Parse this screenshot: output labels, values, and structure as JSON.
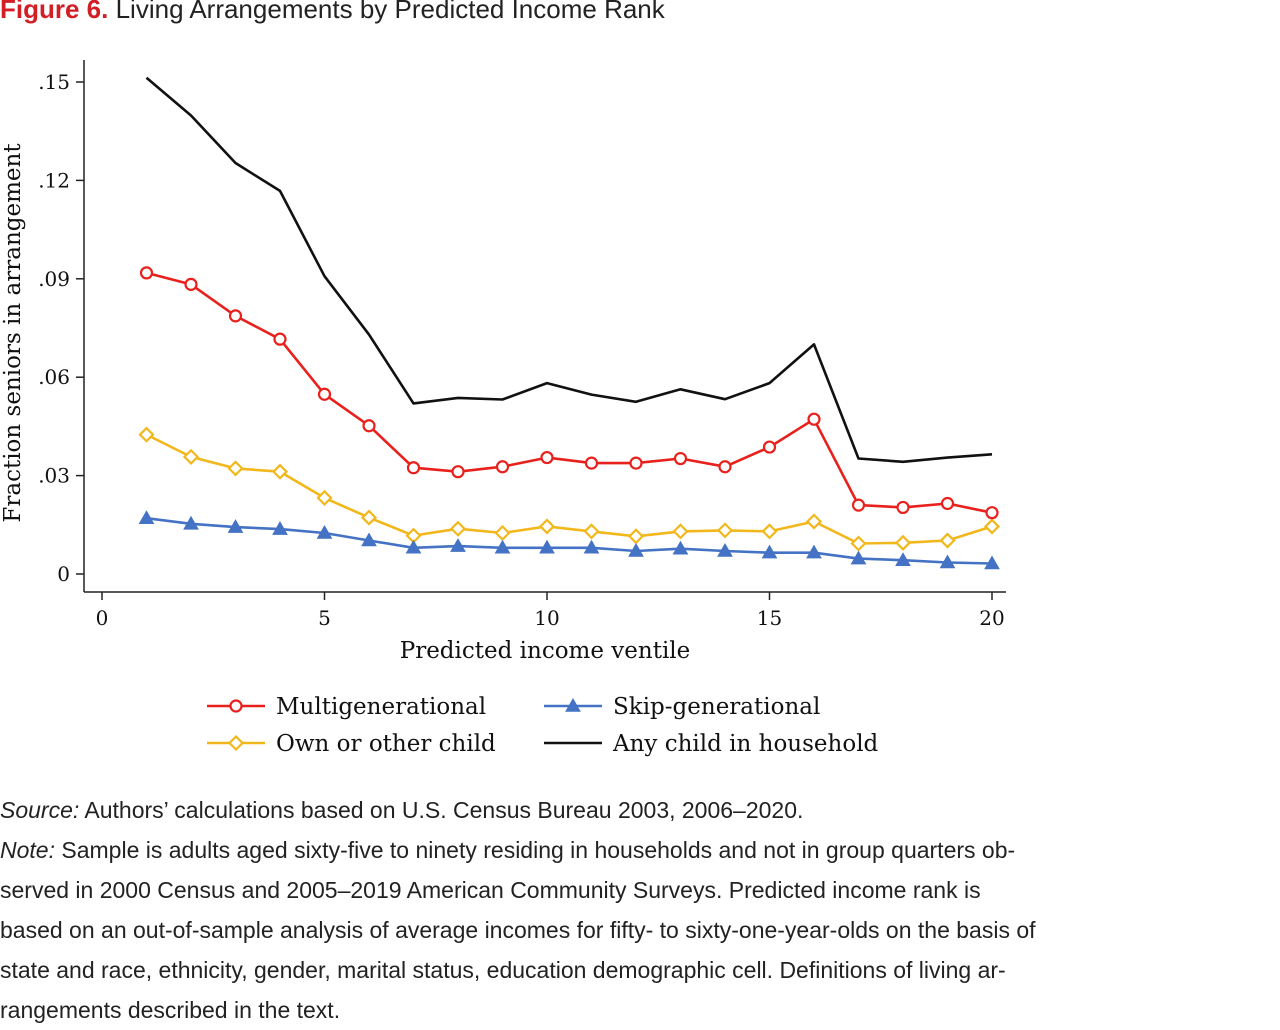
{
  "figure": {
    "label": "Figure 6.",
    "title": "Living Arrangements by Predicted Income Rank"
  },
  "chart_data": {
    "type": "line",
    "xlabel": "Predicted income ventile",
    "ylabel": "Fraction seniors in arrangement",
    "xlim": [
      0,
      20
    ],
    "ylim": [
      0,
      0.15
    ],
    "xticks": [
      0,
      5,
      10,
      15,
      20
    ],
    "xtick_labels": [
      "0",
      "5",
      "10",
      "15",
      "20"
    ],
    "yticks": [
      0,
      0.03,
      0.06,
      0.09,
      0.12,
      0.15
    ],
    "ytick_labels": [
      "0",
      ".03",
      ".06",
      ".09",
      ".12",
      ".15"
    ],
    "grid": false,
    "legend_position": "bottom",
    "x": [
      1,
      2,
      3,
      4,
      5,
      6,
      7,
      8,
      9,
      10,
      11,
      12,
      13,
      14,
      15,
      16,
      17,
      18,
      19,
      20
    ],
    "series": [
      {
        "name": "Multigenerational",
        "color": "#e8211d",
        "marker": "circle-hollow",
        "values": [
          0.0918,
          0.0883,
          0.0787,
          0.0716,
          0.0548,
          0.0452,
          0.0324,
          0.0312,
          0.0327,
          0.0355,
          0.0338,
          0.0338,
          0.0352,
          0.0327,
          0.0387,
          0.0472,
          0.021,
          0.0203,
          0.0215,
          0.0187
        ]
      },
      {
        "name": "Skip-generational",
        "color": "#4472c4",
        "marker": "triangle-filled",
        "values": [
          0.017,
          0.0153,
          0.0143,
          0.0137,
          0.0125,
          0.0102,
          0.008,
          0.0085,
          0.008,
          0.008,
          0.008,
          0.007,
          0.0077,
          0.007,
          0.0065,
          0.0065,
          0.0047,
          0.0042,
          0.0035,
          0.0032
        ]
      },
      {
        "name": "Own or other child",
        "color": "#f2b71b",
        "marker": "diamond-hollow",
        "values": [
          0.0425,
          0.0357,
          0.0322,
          0.0312,
          0.0232,
          0.0172,
          0.0117,
          0.0138,
          0.0125,
          0.0145,
          0.013,
          0.0115,
          0.013,
          0.0133,
          0.013,
          0.016,
          0.0093,
          0.0095,
          0.0102,
          0.0145
        ]
      },
      {
        "name": "Any child in household",
        "color": "#111111",
        "marker": "none",
        "values": [
          0.1513,
          0.1398,
          0.1253,
          0.1168,
          0.0908,
          0.073,
          0.052,
          0.0537,
          0.0532,
          0.0582,
          0.0547,
          0.0525,
          0.0563,
          0.0533,
          0.0582,
          0.07,
          0.0352,
          0.0342,
          0.0355,
          0.0365
        ]
      }
    ]
  },
  "notes": {
    "source_label": "Source:",
    "source_text": " Authors’ calculations based on U.S. Census Bureau 2003, 2006–2020.",
    "note_label": "Note:",
    "note_line1": " Sample is adults aged sixty-five to ninety residing in households and not in group quarters ob-",
    "note_line2": "served in 2000 Census and 2005–2019 American Community Surveys. Predicted income rank is",
    "note_line3": "based on an out-of-sample analysis of average incomes for fifty- to sixty-one-year-olds on the basis of",
    "note_line4": "state and race, ethnicity, gender, marital status, education demographic cell. Definitions of living ar-",
    "note_line5": "rangements described in the text."
  }
}
